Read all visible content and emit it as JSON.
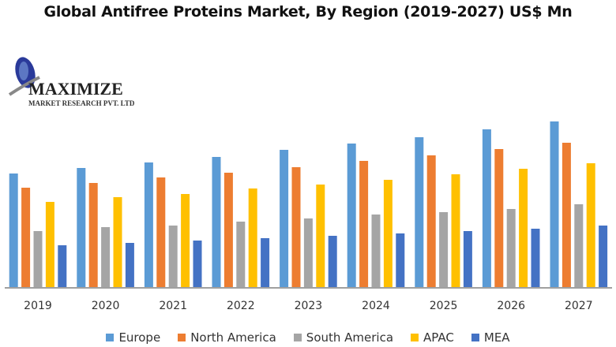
{
  "chart_data": {
    "type": "bar",
    "title": "Global Antifree Proteins Market, By Region (2019-2027) US$ Mn",
    "xlabel": "",
    "ylabel": "",
    "ylim": [
      0,
      220
    ],
    "grid": false,
    "legend_position": "bottom",
    "categories": [
      "2019",
      "2020",
      "2021",
      "2022",
      "2023",
      "2024",
      "2025",
      "2026",
      "2027"
    ],
    "series": [
      {
        "name": "Europe",
        "color": "#5B9BD5",
        "values": [
          144,
          151,
          158,
          165,
          174,
          182,
          190,
          200,
          210
        ]
      },
      {
        "name": "North America",
        "color": "#ED7D31",
        "values": [
          126,
          132,
          139,
          145,
          152,
          160,
          167,
          175,
          183
        ]
      },
      {
        "name": "South America",
        "color": "#A5A5A5",
        "values": [
          71,
          76,
          78,
          83,
          87,
          92,
          95,
          99,
          105
        ]
      },
      {
        "name": "APAC",
        "color": "#FFC000",
        "values": [
          108,
          114,
          118,
          125,
          130,
          136,
          143,
          150,
          157
        ]
      },
      {
        "name": "MEA",
        "color": "#4472C4",
        "values": [
          53,
          56,
          59,
          62,
          65,
          68,
          71,
          74,
          78
        ]
      }
    ]
  },
  "logo": {
    "name": "MAXIMIZE",
    "subtitle": "MARKET RESEARCH PVT. LTD."
  }
}
